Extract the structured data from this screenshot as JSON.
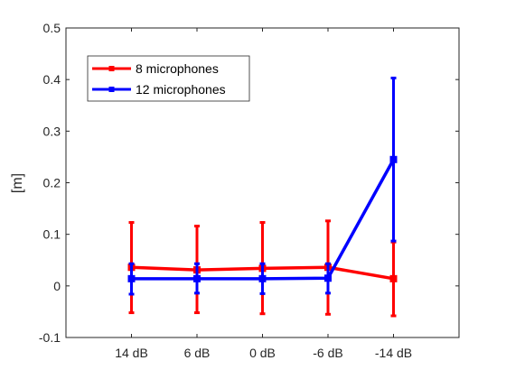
{
  "chart_data": {
    "type": "line",
    "title": "",
    "xlabel": "",
    "ylabel": "[m]",
    "categories": [
      "14 dB",
      "6 dB",
      "0 dB",
      "-6 dB",
      "-14 dB"
    ],
    "ylim": [
      -0.1,
      0.5
    ],
    "yticks": [
      "-0.1",
      "0",
      "0.1",
      "0.2",
      "0.3",
      "0.4",
      "0.5"
    ],
    "grid": false,
    "legend_position": "top-left",
    "series": [
      {
        "name": "8 microphones",
        "color": "#ff0000",
        "values": [
          0.036,
          0.031,
          0.034,
          0.036,
          0.014
        ],
        "err_low": [
          -0.052,
          -0.052,
          -0.054,
          -0.055,
          -0.058
        ],
        "err_high": [
          0.123,
          0.116,
          0.123,
          0.126,
          0.085
        ]
      },
      {
        "name": "12 microphones",
        "color": "#0000ff",
        "values": [
          0.014,
          0.014,
          0.014,
          0.015,
          0.245
        ],
        "err_low": [
          -0.016,
          -0.014,
          -0.015,
          -0.014,
          0.087
        ],
        "err_high": [
          0.043,
          0.043,
          0.043,
          0.043,
          0.403
        ]
      }
    ]
  }
}
